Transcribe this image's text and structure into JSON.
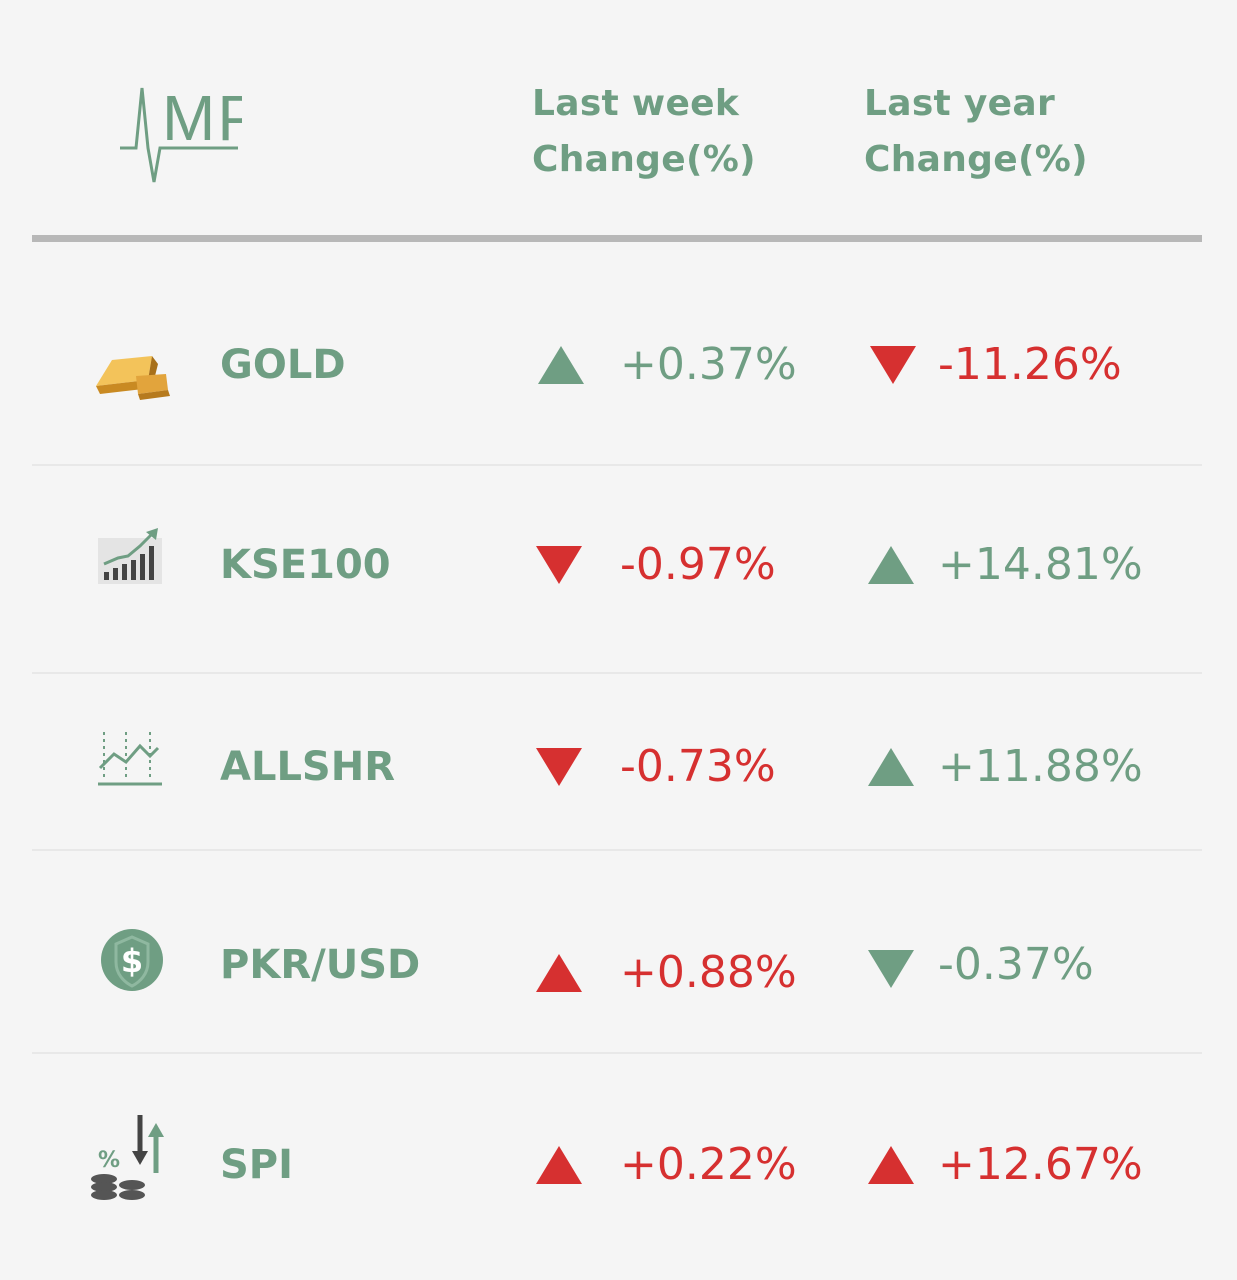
{
  "logo": {
    "text": "MP"
  },
  "header": {
    "week_line1": "Last week",
    "week_line2": "Change(%)",
    "year_line1": "Last year",
    "year_line2": "Change(%)"
  },
  "colors": {
    "up_green": "#6f9e83",
    "down_red": "#d63030",
    "divider": "#b8b8b8",
    "background": "#f5f5f5"
  },
  "rows": [
    {
      "name": "GOLD",
      "icon": "gold-bars-icon",
      "week": {
        "value": "+0.37%",
        "direction": "up",
        "color": "green"
      },
      "year": {
        "value": "-11.26%",
        "direction": "down",
        "color": "red"
      }
    },
    {
      "name": "KSE100",
      "icon": "bar-chart-growth-icon",
      "week": {
        "value": "-0.97%",
        "direction": "down",
        "color": "red"
      },
      "year": {
        "value": "+14.81%",
        "direction": "up",
        "color": "green"
      }
    },
    {
      "name": "ALLSHR",
      "icon": "line-chart-icon",
      "week": {
        "value": "-0.73%",
        "direction": "down",
        "color": "red"
      },
      "year": {
        "value": "+11.88%",
        "direction": "up",
        "color": "green"
      }
    },
    {
      "name": "PKR/USD",
      "icon": "dollar-coin-icon",
      "week": {
        "value": "+0.88%",
        "direction": "up",
        "color": "red"
      },
      "year": {
        "value": "-0.37%",
        "direction": "down",
        "color": "green"
      }
    },
    {
      "name": "SPI",
      "icon": "percent-coins-arrows-icon",
      "week": {
        "value": "+0.22%",
        "direction": "up",
        "color": "red"
      },
      "year": {
        "value": "+12.67%",
        "direction": "up",
        "color": "red"
      }
    }
  ]
}
